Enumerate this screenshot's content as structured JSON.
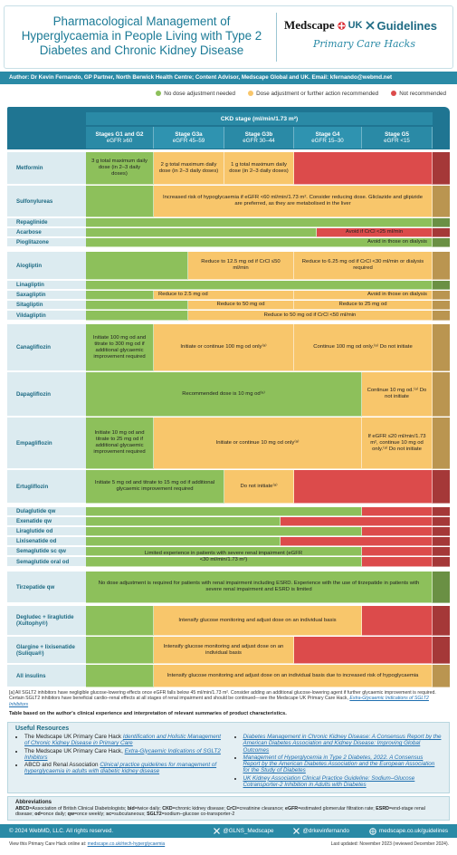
{
  "header": {
    "title": "Pharmacological Management of Hyperglycaemia in People Living with Type 2 Diabetes and Chronic Kidney Disease",
    "logo_medscape": "Medscape",
    "logo_region": "UK",
    "logo_guidelines": "Guidelines",
    "tagline": "Primary Care Hacks"
  },
  "author": "Author: Dr Kevin Fernando, GP Partner, North Berwick Health Centre; Content Advisor, Medscape Global and UK. Email: kfernando@webmd.net",
  "legend": [
    {
      "label": "No dose adjustment needed",
      "color": "#8dc05b"
    },
    {
      "label": "Dose adjustment or further action recommended",
      "color": "#f8c66b"
    },
    {
      "label": "Not recommended",
      "color": "#dc4b4b"
    }
  ],
  "table": {
    "ckd_header": "CKD stage (ml/min/1.73 m²)",
    "stages": [
      {
        "name": "Stages G1 and G2",
        "egfr": "eGFR ≥60"
      },
      {
        "name": "Stage G3a",
        "egfr": "eGFR 45–59"
      },
      {
        "name": "Stage G3b",
        "egfr": "eGFR 30–44"
      },
      {
        "name": "Stage G4",
        "egfr": "eGFR 15–30"
      },
      {
        "name": "Stage G5",
        "egfr": "eGFR <15"
      }
    ],
    "rows": [
      {
        "drug": "Metformin",
        "cells": [
          {
            "color": "#8dc05b",
            "text": "3 g total maximum daily dose (in 2–3 daily doses)"
          },
          {
            "color": "#f8c66b",
            "text": "2 g total maximum daily dose (in 2–3 daily doses)"
          },
          {
            "color": "#f8c66b",
            "text": "1 g total maximum daily dose (in 2–3 daily doses)"
          },
          {
            "color": "#dc4b4b"
          }
        ]
      },
      {
        "drug": "Sulfonylureas",
        "cells": [
          {
            "color": "#8dc05b"
          },
          {
            "color": "#f8c66b",
            "text": "Increased risk of hypoglycaemia if eGFR <60 ml/min/1.73 m². Consider reducing dose. Gliclazide and glipizide are preferred, as they are metabolised in the liver"
          }
        ]
      },
      {
        "drug": "Repaglinide",
        "cells": [
          {
            "color": "#8dc05b"
          }
        ]
      },
      {
        "drug": "Acarbose",
        "cells": [
          {
            "color": "#8dc05b"
          },
          {
            "color": "#dc4b4b",
            "text": "Avoid if CrCl <25 ml/min"
          }
        ]
      },
      {
        "drug": "Pioglitazone",
        "cells": [
          {
            "color": "#8dc05b",
            "text": "Avoid in those on dialysis"
          }
        ]
      },
      {
        "drug": "Alogliptin",
        "cells": [
          {
            "color": "#8dc05b"
          },
          {
            "color": "#f8c66b",
            "text": "Reduce to 12.5 mg od if CrCl ≤50 ml/min"
          },
          {
            "color": "#f8c66b",
            "text": "Reduce to 6.25 mg od if CrCl <30 ml/min or dialysis required"
          }
        ]
      },
      {
        "drug": "Linagliptin",
        "cells": [
          {
            "color": "#8dc05b"
          }
        ]
      },
      {
        "drug": "Saxagliptin",
        "cells": [
          {
            "color": "#8dc05b"
          },
          {
            "color": "#f8c66b",
            "text": "Reduce to 2.5 mg od"
          },
          {
            "color": "#f8c66b",
            "text": "Avoid in those on dialysis"
          }
        ]
      },
      {
        "drug": "Sitagliptin",
        "cells": [
          {
            "color": "#8dc05b"
          },
          {
            "color": "#f8c66b",
            "text": "Reduce to 50 mg od"
          },
          {
            "color": "#f8c66b",
            "text": "Reduce to 25 mg od"
          }
        ]
      },
      {
        "drug": "Vildagliptin",
        "cells": [
          {
            "color": "#8dc05b"
          },
          {
            "color": "#f8c66b",
            "text": "Reduce to 50 mg od if CrCl <50 ml/min"
          }
        ]
      },
      {
        "drug": "Canagliflozin",
        "cells": [
          {
            "color": "#8dc05b",
            "text": "Initiate 100 mg od and titrate to 300 mg od if additional glycaemic improvement required"
          },
          {
            "color": "#f8c66b",
            "text": "Initiate or continue 100 mg od only⁽ᵃ⁾"
          },
          {
            "color": "#f8c66b",
            "text": "Continue 100 mg od only.⁽ᵃ⁾ Do not initiate"
          }
        ]
      },
      {
        "drug": "Dapagliflozin",
        "cells": [
          {
            "color": "#8dc05b",
            "text": "Recommended dose is 10 mg od⁽ᵃ⁾"
          },
          {
            "color": "#f8c66b",
            "text": "Continue 10 mg od.⁽ᵃ⁾ Do not initiate"
          }
        ]
      },
      {
        "drug": "Empagliflozin",
        "cells": [
          {
            "color": "#8dc05b",
            "text": "Initiate 10 mg od and titrate to 25 mg od if additional glycaemic improvement required"
          },
          {
            "color": "#f8c66b",
            "text": "Initiate or continue 10 mg od only⁽ᵃ⁾"
          },
          {
            "color": "#f8c66b",
            "text": "If eGFR ≤20 ml/min/1.73 m², continue 10 mg od only.⁽ᵃ⁾ Do not initiate"
          }
        ]
      },
      {
        "drug": "Ertugliflozin",
        "cells": [
          {
            "color": "#8dc05b",
            "text": "Initiate 5 mg od and titrate to 15 mg od if additional glycaemic improvement required"
          },
          {
            "color": "#f8c66b",
            "text": "Do not initiate⁽ᵃ⁾"
          },
          {
            "color": "#dc4b4b"
          }
        ]
      },
      {
        "drug": "Dulaglutide qw",
        "cells": [
          {
            "color": "#8dc05b"
          },
          {
            "color": "#dc4b4b"
          }
        ]
      },
      {
        "drug": "Exenatide qw",
        "cells": [
          {
            "color": "#8dc05b"
          },
          {
            "color": "#dc4b4b"
          }
        ]
      },
      {
        "drug": "Liraglutide od",
        "cells": [
          {
            "color": "#8dc05b"
          },
          {
            "color": "#dc4b4b"
          }
        ]
      },
      {
        "drug": "Lixisenatide od",
        "cells": [
          {
            "color": "#8dc05b"
          },
          {
            "color": "#dc4b4b"
          }
        ]
      },
      {
        "drug": "Semaglutide sc qw",
        "cells": [
          {
            "color": "#8dc05b",
            "text": "Limited experience in patients with severe renal impairment (eGFR <30 ml/min/1.73 m²)"
          },
          {
            "color": "#dc4b4b"
          }
        ]
      },
      {
        "drug": "Semaglutide oral od",
        "cells": [
          {
            "color": "#8dc05b"
          },
          {
            "color": "#dc4b4b"
          }
        ]
      },
      {
        "drug": "Tirzepatide qw",
        "cells": [
          {
            "color": "#8dc05b",
            "text": "No dose adjustment is required for patients with renal impairment including ESRD. Experience with the use of tirzepatide in patients with severe renal impairment and ESRD is limited"
          }
        ]
      },
      {
        "drug": "Degludec + liraglutide (Xultophy®)",
        "cells": [
          {
            "color": "#8dc05b"
          },
          {
            "color": "#f8c66b",
            "text": "Intensify glucose monitoring and adjust dose on an individual basis"
          },
          {
            "color": "#dc4b4b"
          }
        ]
      },
      {
        "drug": "Glargine + lixisenatide (Suliqua®)",
        "cells": [
          {
            "color": "#8dc05b"
          },
          {
            "color": "#f8c66b",
            "text": "Intensify glucose monitoring and adjust dose on an individual basis"
          },
          {
            "color": "#dc4b4b"
          }
        ]
      },
      {
        "drug": "All insulins",
        "cells": [
          {
            "color": "#8dc05b"
          },
          {
            "color": "#f8c66b",
            "text": "Intensify glucose monitoring and adjust dose on an individual basis due to increased risk of hypoglycaemia"
          }
        ]
      }
    ]
  },
  "footnote": {
    "text": "[a] All SGLT2 inhibitors have negligible glucose-lowering effects once eGFR falls below 45 ml/min/1.73 m². Consider adding an additional glucose-lowering agent if further glycaemic improvement is required. Certain SGLT2 inhibitors have beneficial cardio–renal effects at all stages of renal impairment and should be continued—see the Medscape UK Primary Care Hack, ",
    "link": "Extra-Glycaemic Indications of SGLT2 Inhibitors"
  },
  "table_note": "Table based on the author's clinical experience and interpretation of relevant summaries of product characteristics.",
  "resources": {
    "title": "Useful Resources",
    "items": [
      {
        "prefix": "The Medscape UK Primary Care Hack ",
        "link": "Identification and Holistic Management of Chronic Kidney Disease in Primary Care"
      },
      {
        "prefix": "The Medscape UK Primary Care Hack, ",
        "link": "Extra-Glycaemic Indications of SGLT2 Inhibitors"
      },
      {
        "prefix": "ABCD and Renal Association ",
        "link": "Clinical practice guidelines for management of hyperglycaemia in adults with diabetic kidney disease"
      },
      {
        "link": "Diabetes Management in Chronic Kidney Disease: A Consensus Report by the American Diabetes Association and Kidney Disease: Improving Global Outcomes"
      },
      {
        "link": "Management of Hyperglycemia in Type 2 Diabetes, 2022. A Consensus Report by the American Diabetes Association and the European Association for the Study of Diabetes"
      },
      {
        "link": "UK Kidney Association Clinical Practice Guideline: Sodium–Glucose Cotransporter-2 Inhibition in Adults with Diabetes"
      }
    ]
  },
  "abbreviations": {
    "title": "Abbreviations",
    "items": [
      {
        "term": "ABCD",
        "definition": "=Association of British Clinical Diabetologists; "
      },
      {
        "term": "bid",
        "definition": "=twice daily; "
      },
      {
        "term": "CKD",
        "definition": "=chronic kidney disease; "
      },
      {
        "term": "CrCl",
        "definition": "=creatinine clearance; "
      },
      {
        "term": "eGFR",
        "definition": "=estimated glomerular filtration rate; "
      },
      {
        "term": "ESRD",
        "definition": "=end-stage renal disease; "
      },
      {
        "term": "od",
        "definition": "=once daily; "
      },
      {
        "term": "qw",
        "definition": "=once weekly; "
      },
      {
        "term": "sc",
        "definition": "=subcutaneous; "
      },
      {
        "term": "SGLT2",
        "definition": "=sodium–glucose co-transporter-2"
      }
    ]
  },
  "footer": {
    "copyright": "© 2024 WebMD, LLC. All rights reserved.",
    "handle_1": "@GLNS_Medscape",
    "handle_2": "@drkevinfernando",
    "website": "medscape.co.uk/guidelines"
  },
  "bottom": {
    "online_prefix": "View this Primary Care Hack online at: ",
    "online_link": "medscape.co.uk/rtech-hyperglycaemia",
    "updated": "Last updated: November 2023 (reviewed December 2024)."
  }
}
